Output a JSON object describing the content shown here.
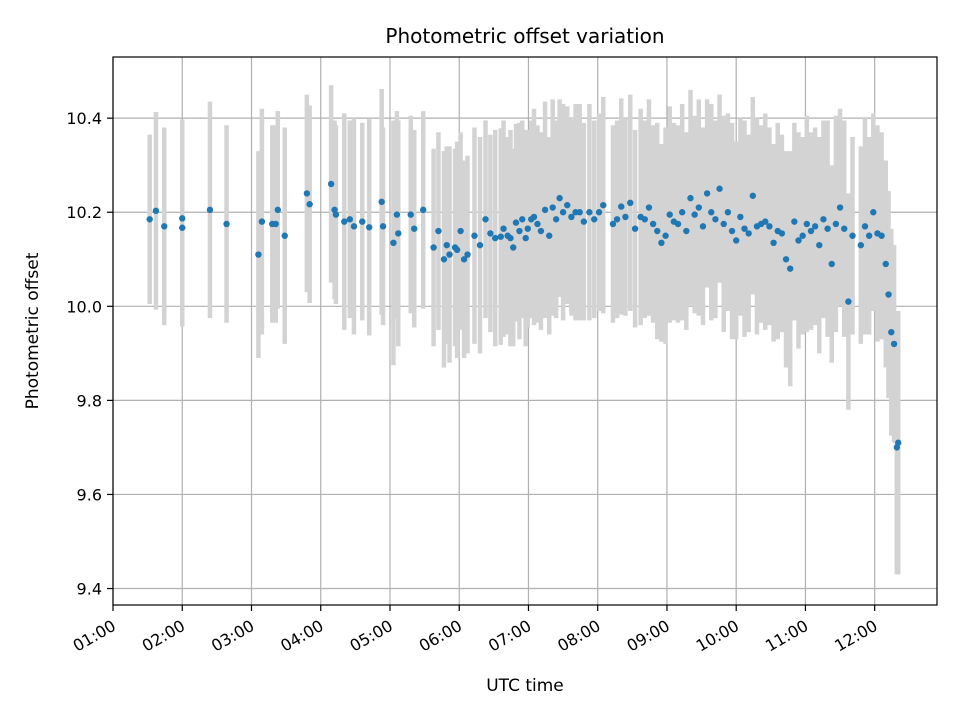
{
  "chart_data": {
    "type": "scatter",
    "title": "Photometric offset variation",
    "xlabel": "UTC time",
    "ylabel": "Photometric offset",
    "grid": true,
    "xlim": [
      1.0,
      12.9
    ],
    "ylim": [
      9.365,
      10.53
    ],
    "x_ticks": [
      {
        "value": 1,
        "label": "01:00"
      },
      {
        "value": 2,
        "label": "02:00"
      },
      {
        "value": 3,
        "label": "03:00"
      },
      {
        "value": 4,
        "label": "04:00"
      },
      {
        "value": 5,
        "label": "05:00"
      },
      {
        "value": 6,
        "label": "06:00"
      },
      {
        "value": 7,
        "label": "07:00"
      },
      {
        "value": 8,
        "label": "08:00"
      },
      {
        "value": 9,
        "label": "09:00"
      },
      {
        "value": 10,
        "label": "10:00"
      },
      {
        "value": 11,
        "label": "11:00"
      },
      {
        "value": 12,
        "label": "12:00"
      }
    ],
    "y_ticks": [
      {
        "value": 9.4,
        "label": "9.4"
      },
      {
        "value": 9.6,
        "label": "9.6"
      },
      {
        "value": 9.8,
        "label": "9.8"
      },
      {
        "value": 10.0,
        "label": "10.0"
      },
      {
        "value": 10.2,
        "label": "10.2"
      },
      {
        "value": 10.4,
        "label": "10.4"
      }
    ],
    "colors": {
      "point": "#1f77b4",
      "errorbar": "#d3d3d3",
      "grid": "#b0b0b0"
    },
    "series": [
      {
        "name": "Photometric offset",
        "x": [
          1.53,
          1.62,
          1.74,
          2.0,
          2.0,
          2.4,
          2.64,
          3.1,
          3.15,
          3.3,
          3.35,
          3.38,
          3.48,
          3.8,
          3.84,
          4.15,
          4.2,
          4.22,
          4.34,
          4.42,
          4.48,
          4.6,
          4.7,
          4.88,
          4.9,
          5.05,
          5.1,
          5.12,
          5.3,
          5.35,
          5.48,
          5.63,
          5.7,
          5.78,
          5.82,
          5.86,
          5.94,
          5.97,
          6.02,
          6.07,
          6.12,
          6.22,
          6.3,
          6.38,
          6.45,
          6.52,
          6.6,
          6.64,
          6.7,
          6.74,
          6.78,
          6.82,
          6.87,
          6.91,
          6.96,
          6.99,
          7.04,
          7.08,
          7.13,
          7.18,
          7.24,
          7.3,
          7.35,
          7.4,
          7.45,
          7.5,
          7.56,
          7.62,
          7.68,
          7.74,
          7.8,
          7.88,
          7.95,
          8.02,
          8.08,
          8.22,
          8.28,
          8.34,
          8.4,
          8.47,
          8.54,
          8.62,
          8.68,
          8.74,
          8.8,
          8.86,
          8.92,
          8.98,
          9.04,
          9.1,
          9.16,
          9.22,
          9.28,
          9.34,
          9.4,
          9.46,
          9.52,
          9.58,
          9.64,
          9.7,
          9.76,
          9.82,
          9.88,
          9.94,
          10.0,
          10.06,
          10.12,
          10.18,
          10.24,
          10.3,
          10.36,
          10.42,
          10.48,
          10.54,
          10.6,
          10.66,
          10.72,
          10.78,
          10.84,
          10.9,
          10.96,
          11.02,
          11.08,
          11.14,
          11.2,
          11.26,
          11.32,
          11.38,
          11.44,
          11.5,
          11.56,
          11.62,
          11.68,
          11.8,
          11.86,
          11.92,
          11.98,
          12.04,
          12.1,
          12.16,
          12.2,
          12.24,
          12.28,
          12.32,
          12.34
        ],
        "y": [
          10.185,
          10.203,
          10.17,
          10.187,
          10.167,
          10.205,
          10.175,
          10.11,
          10.18,
          10.175,
          10.175,
          10.205,
          10.15,
          10.24,
          10.217,
          10.26,
          10.205,
          10.195,
          10.18,
          10.185,
          10.17,
          10.18,
          10.168,
          10.222,
          10.17,
          10.135,
          10.195,
          10.155,
          10.195,
          10.165,
          10.205,
          10.125,
          10.16,
          10.1,
          10.13,
          10.11,
          10.125,
          10.12,
          10.16,
          10.1,
          10.11,
          10.15,
          10.13,
          10.185,
          10.155,
          10.145,
          10.148,
          10.165,
          10.15,
          10.145,
          10.125,
          10.178,
          10.16,
          10.185,
          10.145,
          10.165,
          10.185,
          10.19,
          10.175,
          10.16,
          10.205,
          10.15,
          10.21,
          10.185,
          10.23,
          10.2,
          10.215,
          10.19,
          10.2,
          10.2,
          10.18,
          10.2,
          10.185,
          10.2,
          10.215,
          10.175,
          10.185,
          10.212,
          10.19,
          10.22,
          10.165,
          10.19,
          10.185,
          10.21,
          10.175,
          10.16,
          10.135,
          10.15,
          10.195,
          10.18,
          10.175,
          10.2,
          10.16,
          10.23,
          10.195,
          10.21,
          10.17,
          10.24,
          10.2,
          10.185,
          10.25,
          10.175,
          10.2,
          10.16,
          10.14,
          10.19,
          10.165,
          10.155,
          10.235,
          10.17,
          10.175,
          10.18,
          10.17,
          10.135,
          10.16,
          10.155,
          10.1,
          10.08,
          10.18,
          10.14,
          10.15,
          10.175,
          10.16,
          10.17,
          10.13,
          10.185,
          10.165,
          10.09,
          10.175,
          10.21,
          10.165,
          10.01,
          10.15,
          10.13,
          10.17,
          10.15,
          10.2,
          10.155,
          10.15,
          10.09,
          10.025,
          9.945,
          9.92,
          9.7,
          9.71
        ],
        "yerr": [
          0.18,
          0.21,
          0.21,
          0.21,
          0.21,
          0.23,
          0.21,
          0.22,
          0.24,
          0.21,
          0.21,
          0.21,
          0.23,
          0.21,
          0.21,
          0.21,
          0.19,
          0.19,
          0.23,
          0.21,
          0.23,
          0.21,
          0.23,
          0.24,
          0.21,
          0.26,
          0.22,
          0.24,
          0.21,
          0.21,
          0.21,
          0.21,
          0.21,
          0.23,
          0.21,
          0.23,
          0.21,
          0.23,
          0.21,
          0.21,
          0.21,
          0.23,
          0.23,
          0.21,
          0.21,
          0.23,
          0.23,
          0.23,
          0.21,
          0.23,
          0.21,
          0.21,
          0.23,
          0.21,
          0.23,
          0.21,
          0.21,
          0.23,
          0.21,
          0.21,
          0.23,
          0.21,
          0.23,
          0.21,
          0.21,
          0.23,
          0.21,
          0.21,
          0.23,
          0.23,
          0.21,
          0.23,
          0.21,
          0.21,
          0.23,
          0.21,
          0.21,
          0.23,
          0.21,
          0.23,
          0.21,
          0.23,
          0.21,
          0.23,
          0.21,
          0.23,
          0.21,
          0.23,
          0.23,
          0.21,
          0.21,
          0.23,
          0.21,
          0.23,
          0.21,
          0.23,
          0.21,
          0.2,
          0.23,
          0.21,
          0.2,
          0.23,
          0.21,
          0.23,
          0.21,
          0.21,
          0.23,
          0.21,
          0.21,
          0.23,
          0.21,
          0.23,
          0.21,
          0.21,
          0.23,
          0.21,
          0.23,
          0.25,
          0.21,
          0.23,
          0.21,
          0.23,
          0.21,
          0.21,
          0.23,
          0.21,
          0.23,
          0.21,
          0.23,
          0.21,
          0.23,
          0.23,
          0.21,
          0.21,
          0.23,
          0.21,
          0.21,
          0.23,
          0.22,
          0.22,
          0.22,
          0.22,
          0.21,
          0.27,
          0.28
        ]
      }
    ]
  }
}
